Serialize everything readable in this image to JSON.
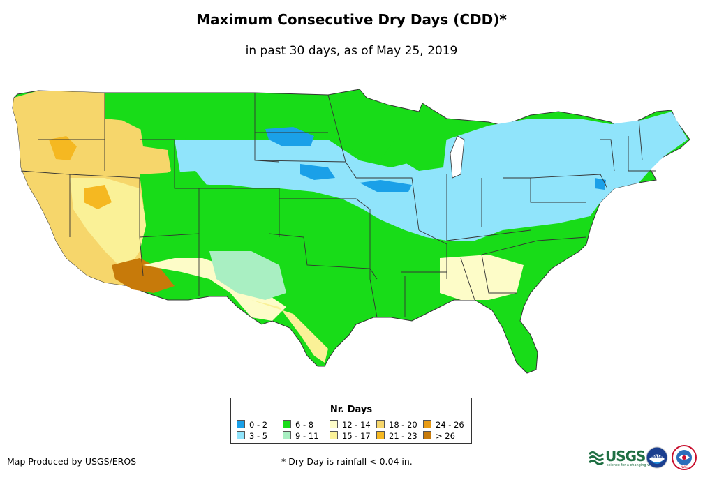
{
  "title": "Maximum Consecutive Dry Days (CDD)*",
  "subtitle": "in past 30 days, as of May 25, 2019",
  "legend": {
    "title": "Nr. Days",
    "items": [
      {
        "label": "0 - 2",
        "color": "#1aa0e8"
      },
      {
        "label": "3 - 5",
        "color": "#90e4fb"
      },
      {
        "label": "6 - 8",
        "color": "#18dc18"
      },
      {
        "label": "9 - 11",
        "color": "#a9efc2"
      },
      {
        "label": "12 - 14",
        "color": "#fdfcc8"
      },
      {
        "label": "15 - 17",
        "color": "#faf197"
      },
      {
        "label": "18 - 20",
        "color": "#f6d66b"
      },
      {
        "label": "21 - 23",
        "color": "#f5b821"
      },
      {
        "label": "24 - 26",
        "color": "#e89b14"
      },
      {
        "label": "> 26",
        "color": "#c77a0a"
      }
    ]
  },
  "credit": "Map Produced by USGS/EROS",
  "footnote": "* Dry Day is rainfall < 0.04 in.",
  "logos": {
    "usgs": "USGS",
    "usgs_tagline": "science for a changing world",
    "noaa": "NOAA",
    "nws": "NWS"
  }
}
